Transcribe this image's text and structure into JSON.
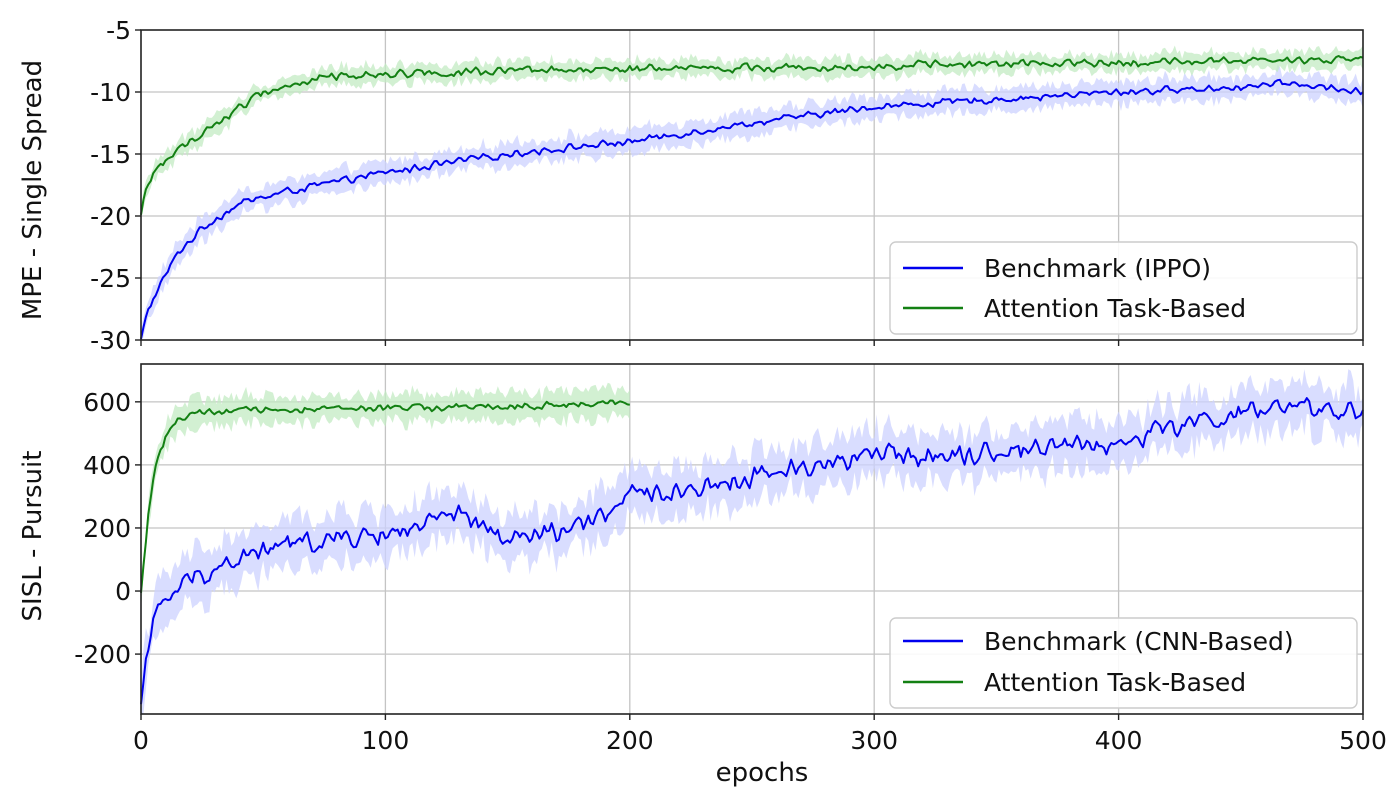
{
  "colors": {
    "benchmark": "#0000ee",
    "benchmark_band": "#ccd2ff",
    "attention": "#138013",
    "attention_band": "#c3ebc3",
    "grid": "#c4c4c4"
  },
  "chart_data": [
    {
      "id": "mpe",
      "type": "line",
      "ylabel": "MPE - Single Spread",
      "xlabel": "",
      "xlim": [
        0,
        500
      ],
      "ylim": [
        -30,
        -5
      ],
      "yticks": [
        -30,
        -25,
        -20,
        -15,
        -10,
        -5
      ],
      "ytick_labels": [
        "-30",
        "-25",
        "-20",
        "-15",
        "-10",
        "-5"
      ],
      "xticks": [
        0,
        100,
        200,
        300,
        400,
        500
      ],
      "grid": true,
      "legend_position": "bottom-right",
      "series": [
        {
          "name": "Benchmark (IPPO)",
          "color_key": "benchmark",
          "x_end": 500,
          "noise": 0.35,
          "band": 0.9,
          "keypoints": [
            [
              0,
              -30
            ],
            [
              3,
              -27.5
            ],
            [
              8,
              -25.5
            ],
            [
              15,
              -23
            ],
            [
              25,
              -21
            ],
            [
              40,
              -19
            ],
            [
              60,
              -18
            ],
            [
              100,
              -16.5
            ],
            [
              150,
              -15
            ],
            [
              200,
              -14
            ],
            [
              250,
              -12.5
            ],
            [
              300,
              -11.2
            ],
            [
              350,
              -10.6
            ],
            [
              400,
              -10
            ],
            [
              450,
              -9.6
            ],
            [
              470,
              -9.3
            ],
            [
              500,
              -10
            ]
          ]
        },
        {
          "name": "Attention Task-Based",
          "color_key": "attention",
          "x_end": 500,
          "noise": 0.4,
          "band": 0.7,
          "keypoints": [
            [
              0,
              -20
            ],
            [
              2,
              -18
            ],
            [
              5,
              -16.5
            ],
            [
              10,
              -15.5
            ],
            [
              20,
              -14
            ],
            [
              35,
              -12
            ],
            [
              50,
              -10
            ],
            [
              75,
              -8.8
            ],
            [
              100,
              -8.5
            ],
            [
              200,
              -8.2
            ],
            [
              300,
              -7.9
            ],
            [
              400,
              -7.6
            ],
            [
              500,
              -7.4
            ]
          ]
        }
      ]
    },
    {
      "id": "sisl",
      "type": "line",
      "ylabel": "SISL - Pursuit",
      "xlabel": "epochs",
      "xlim": [
        0,
        500
      ],
      "ylim": [
        -390,
        720
      ],
      "yticks": [
        -200,
        0,
        200,
        400,
        600
      ],
      "ytick_labels": [
        "-200",
        "0",
        "200",
        "400",
        "600"
      ],
      "xticks": [
        0,
        100,
        200,
        300,
        400,
        500
      ],
      "xtick_labels": [
        "0",
        "100",
        "200",
        "300",
        "400",
        "500"
      ],
      "grid": true,
      "legend_position": "bottom-right",
      "series": [
        {
          "name": "Benchmark (CNN-Based)",
          "color_key": "benchmark",
          "x_end": 500,
          "noise": 40,
          "band": 75,
          "keypoints": [
            [
              0,
              -370
            ],
            [
              2,
              -200
            ],
            [
              5,
              -100
            ],
            [
              10,
              -30
            ],
            [
              20,
              40
            ],
            [
              40,
              100
            ],
            [
              60,
              150
            ],
            [
              100,
              180
            ],
            [
              130,
              240
            ],
            [
              150,
              160
            ],
            [
              180,
              200
            ],
            [
              200,
              300
            ],
            [
              230,
              330
            ],
            [
              260,
              380
            ],
            [
              300,
              430
            ],
            [
              350,
              440
            ],
            [
              380,
              470
            ],
            [
              400,
              460
            ],
            [
              420,
              520
            ],
            [
              450,
              560
            ],
            [
              470,
              580
            ],
            [
              500,
              570
            ]
          ]
        },
        {
          "name": "Attention Task-Based",
          "color_key": "attention",
          "x_end": 200,
          "noise": 14,
          "band": 45,
          "keypoints": [
            [
              0,
              -10
            ],
            [
              3,
              250
            ],
            [
              6,
              400
            ],
            [
              10,
              490
            ],
            [
              15,
              545
            ],
            [
              25,
              565
            ],
            [
              50,
              575
            ],
            [
              100,
              580
            ],
            [
              150,
              585
            ],
            [
              200,
              595
            ]
          ]
        }
      ]
    }
  ]
}
